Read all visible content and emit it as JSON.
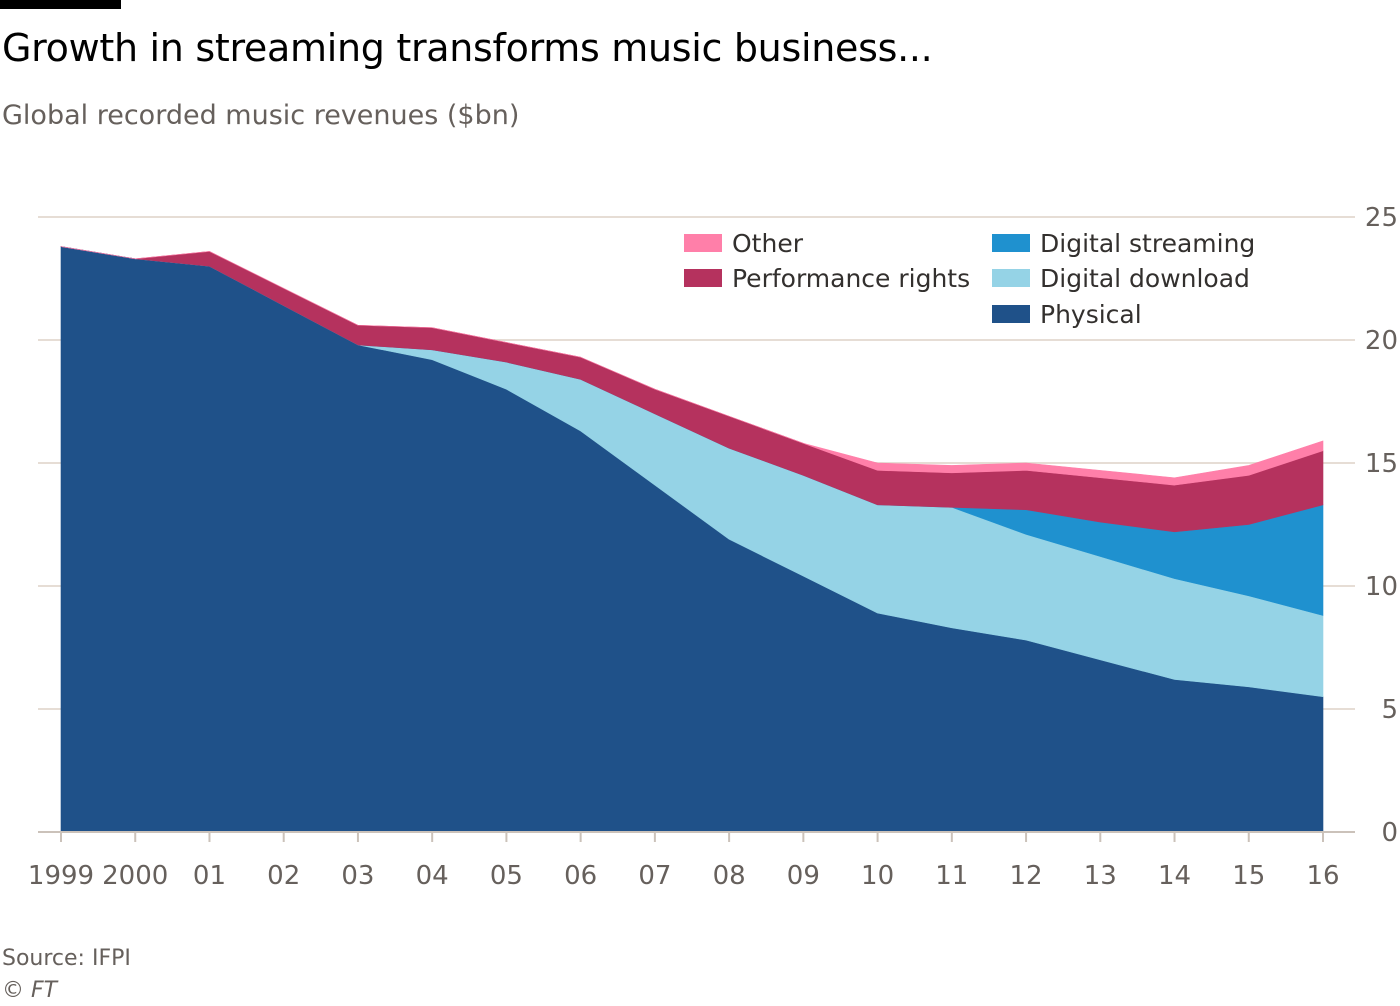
{
  "header": {
    "title": "Growth in streaming transforms music business...",
    "subtitle": "Global recorded music revenues ($bn)"
  },
  "footer": {
    "source": "Source: IFPI",
    "credit": "© FT"
  },
  "chart_data": {
    "type": "area",
    "stacked": true,
    "title": "Growth in streaming transforms music business...",
    "subtitle": "Global recorded music revenues ($bn)",
    "x": [
      1999,
      2000,
      2001,
      2002,
      2003,
      2004,
      2005,
      2006,
      2007,
      2008,
      2009,
      2010,
      2011,
      2012,
      2013,
      2014,
      2015,
      2016
    ],
    "x_tick_labels": [
      "1999",
      "2000",
      "01",
      "02",
      "03",
      "04",
      "05",
      "06",
      "07",
      "08",
      "09",
      "10",
      "11",
      "12",
      "13",
      "14",
      "15",
      "16"
    ],
    "y_ticks": [
      0,
      5,
      10,
      15,
      20,
      25
    ],
    "ylim": [
      0,
      25
    ],
    "y_axis_side": "right",
    "grid": true,
    "legend_position": "top-right",
    "series": [
      {
        "name": "Physical",
        "color": "#1f5189",
        "values": [
          23.8,
          23.3,
          23.0,
          21.4,
          19.8,
          19.2,
          18.0,
          16.3,
          14.1,
          11.9,
          10.4,
          8.9,
          8.3,
          7.8,
          7.0,
          6.2,
          5.9,
          5.5
        ]
      },
      {
        "name": "Digital download",
        "color": "#95d3e6",
        "values": [
          0.0,
          0.0,
          0.0,
          0.0,
          0.0,
          0.4,
          1.1,
          2.1,
          2.9,
          3.7,
          4.1,
          4.4,
          4.9,
          4.3,
          4.2,
          4.1,
          3.7,
          3.3
        ]
      },
      {
        "name": "Digital streaming",
        "color": "#1f91cf",
        "values": [
          0.0,
          0.0,
          0.0,
          0.0,
          0.0,
          0.0,
          0.0,
          0.0,
          0.0,
          0.0,
          0.0,
          0.0,
          0.0,
          1.0,
          1.4,
          1.9,
          2.9,
          4.5
        ]
      },
      {
        "name": "Performance rights",
        "color": "#b5325e",
        "values": [
          0.0,
          0.0,
          0.6,
          0.7,
          0.8,
          0.9,
          0.8,
          0.9,
          1.0,
          1.3,
          1.3,
          1.4,
          1.4,
          1.6,
          1.8,
          1.9,
          2.0,
          2.2
        ]
      },
      {
        "name": "Other",
        "color": "#ff7fa9",
        "values": [
          0.0,
          0.0,
          0.0,
          0.0,
          0.0,
          0.0,
          0.0,
          0.0,
          0.0,
          0.0,
          0.0,
          0.3,
          0.3,
          0.3,
          0.3,
          0.3,
          0.4,
          0.4
        ]
      }
    ],
    "legend_order": [
      "Other",
      "Performance rights",
      "Digital streaming",
      "Digital download",
      "Physical"
    ],
    "colors": {
      "gridline": "#e6ddd5",
      "axis": "#cbc2ba",
      "tick_text": "#66605c"
    }
  }
}
